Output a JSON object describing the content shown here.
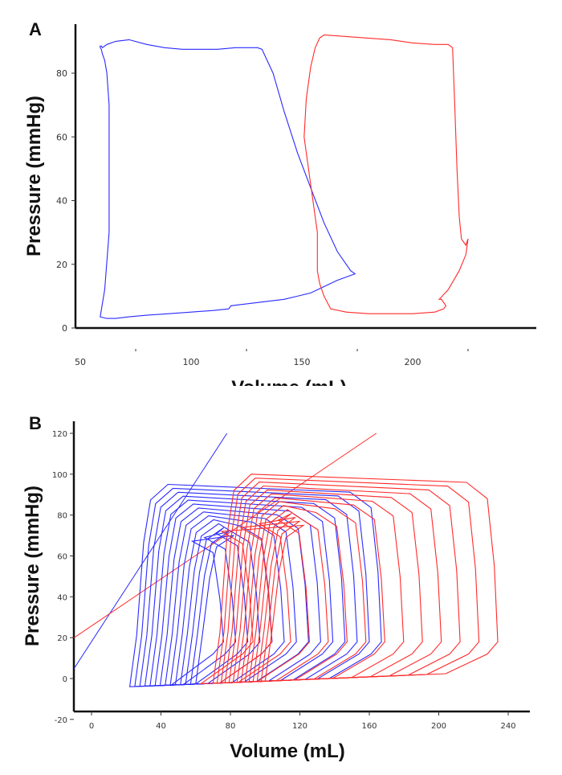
{
  "chart_data": [
    {
      "panel": "A",
      "type": "line",
      "xlabel": "Volume (mL)",
      "ylabel": "Pressure (mmHg)",
      "xlim": [
        50,
        225
      ],
      "ylim": [
        0,
        92
      ],
      "xticks": [
        50,
        100,
        150,
        200
      ],
      "yticks": [
        0,
        20,
        40,
        60,
        80
      ],
      "colors": {
        "blue": "#2a2aff",
        "red": "#ff2a2a"
      },
      "series": [
        {
          "color": "#2a2aff",
          "x": [
            60,
            62,
            66,
            72,
            80,
            88,
            96,
            104,
            112,
            120,
            126,
            130,
            132,
            137,
            142,
            148,
            154,
            160,
            166,
            172,
            174,
            172,
            166,
            160,
            154,
            148,
            142,
            136,
            130,
            124,
            118,
            117,
            110,
            100,
            90,
            80,
            72,
            66,
            62,
            59,
            61,
            63,
            63,
            63,
            62,
            61,
            60,
            59.5,
            59,
            59,
            59.5,
            60
          ],
          "y": [
            88,
            89,
            90,
            90.5,
            89,
            88,
            87.5,
            87.5,
            87.5,
            88,
            88,
            88,
            87.5,
            80,
            68,
            55,
            44,
            33,
            24,
            18,
            17,
            16.5,
            15,
            13,
            11,
            10,
            9,
            8.5,
            8,
            7.5,
            7,
            6,
            5.5,
            5,
            4.5,
            4,
            3.5,
            3,
            3,
            3.5,
            12,
            30,
            50,
            70,
            80,
            84,
            86,
            87.5,
            88,
            88.5,
            88.5,
            88
          ]
        },
        {
          "color": "#ff2a2a",
          "x": [
            151,
            152,
            154,
            156,
            158,
            160,
            170,
            180,
            190,
            200,
            210,
            216,
            218,
            219,
            220,
            221,
            222,
            224,
            225,
            224,
            221,
            216,
            212,
            213,
            215,
            214,
            210,
            200,
            190,
            180,
            170,
            163,
            160,
            158,
            157,
            157,
            154,
            152,
            151
          ],
          "y": [
            60,
            72,
            82,
            88,
            91,
            92,
            91.5,
            91,
            90.5,
            89.5,
            89,
            89,
            88,
            70,
            50,
            35,
            28,
            26,
            28,
            23,
            18,
            12,
            9,
            9,
            7,
            6,
            5,
            4.5,
            4.5,
            4.5,
            5,
            6,
            10,
            14,
            18,
            30,
            45,
            55,
            60
          ]
        }
      ]
    },
    {
      "panel": "B",
      "type": "line",
      "xlabel": "Volume (mL)",
      "ylabel": "Pressure (mmHg)",
      "xlim": [
        -10,
        255
      ],
      "ylim": [
        -20,
        125
      ],
      "xticks": [
        0,
        40,
        80,
        120,
        160,
        200,
        240
      ],
      "yticks": [
        -20,
        0,
        20,
        40,
        60,
        80,
        100,
        120
      ],
      "colors": {
        "blue": "#2a2aff",
        "red": "#ff2a2a"
      },
      "reference_lines": [
        {
          "color": "#2a2aff",
          "x": [
            -10,
            78
          ],
          "y": [
            5,
            120
          ]
        },
        {
          "color": "#ff2a2a",
          "x": [
            -10,
            164
          ],
          "y": [
            20,
            120
          ]
        }
      ],
      "loop_families": [
        {
          "color": "#2a2aff",
          "v_dia_start": 22,
          "v_dia_end": 60,
          "v_sys_start": 167,
          "v_sys_end": 76,
          "p_peak_start": 95,
          "p_peak_end": 70,
          "count": 14
        },
        {
          "color": "#ff2a2a",
          "v_dia_start": 70,
          "v_dia_end": 100,
          "v_sys_start": 234,
          "v_sys_end": 93,
          "p_peak_start": 100,
          "p_peak_end": 75,
          "count": 14
        }
      ]
    }
  ]
}
